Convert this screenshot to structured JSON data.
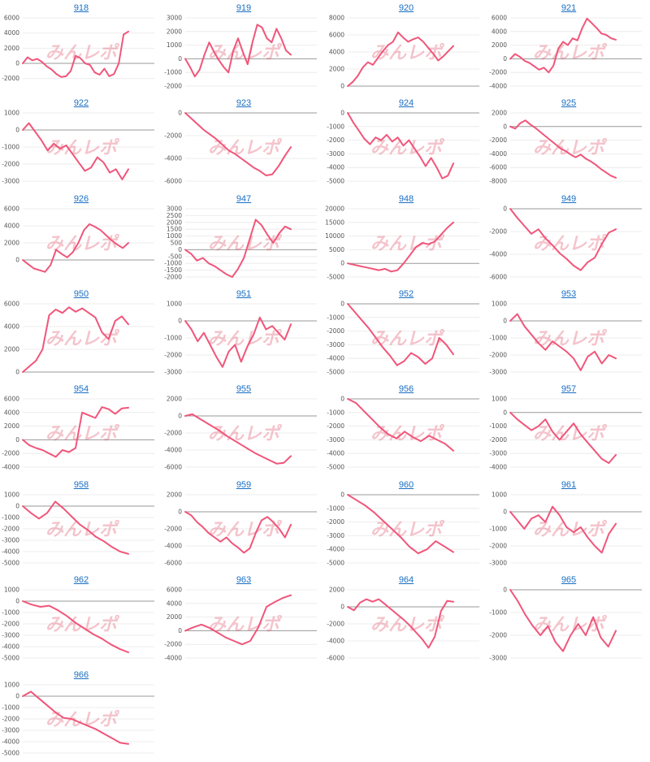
{
  "style": {
    "line_color": "#f0567a",
    "zero_line_color": "#999999",
    "grid_color": "#e8e8e8",
    "title_color": "#1a6fc4",
    "watermark_color": "#e05a6e"
  },
  "watermark": {
    "text": "みんレポ"
  },
  "chart_data": [
    {
      "type": "line",
      "title": "918",
      "yticks": [
        6000,
        4000,
        2000,
        0,
        -2000
      ],
      "ylim": [
        -3000,
        6000
      ],
      "y": [
        0,
        800,
        400,
        600,
        200,
        -400,
        -800,
        -1400,
        -1800,
        -1700,
        -1000,
        1000,
        700,
        0,
        -200,
        -1200,
        -1500,
        -700,
        -1700,
        -1400,
        0,
        3800,
        4200
      ]
    },
    {
      "type": "line",
      "title": "919",
      "yticks": [
        3000,
        2000,
        1000,
        0,
        -1000,
        -2000
      ],
      "ylim": [
        -2000,
        3000
      ],
      "y": [
        0,
        -600,
        -1300,
        -800,
        300,
        1200,
        500,
        -100,
        -600,
        -1000,
        600,
        1500,
        500,
        -400,
        1200,
        2500,
        2300,
        1500,
        1200,
        2200,
        1500,
        600,
        300
      ]
    },
    {
      "type": "line",
      "title": "920",
      "yticks": [
        8000,
        6000,
        4000,
        2000,
        0
      ],
      "ylim": [
        0,
        8000
      ],
      "y": [
        0,
        500,
        1200,
        2200,
        2800,
        2500,
        3300,
        4100,
        4800,
        5200,
        6300,
        5700,
        5200,
        5500,
        5700,
        5200,
        4500,
        3800,
        3000,
        3500,
        4100,
        4700
      ]
    },
    {
      "type": "line",
      "title": "921",
      "yticks": [
        6000,
        4000,
        2000,
        0,
        -2000,
        -4000
      ],
      "ylim": [
        -4000,
        6000
      ],
      "y": [
        0,
        700,
        300,
        -300,
        -600,
        -1100,
        -1600,
        -1300,
        -2000,
        -1000,
        1500,
        2500,
        2000,
        3000,
        2700,
        4500,
        5900,
        5200,
        4500,
        3700,
        3500,
        3000,
        2800
      ]
    },
    {
      "type": "line",
      "title": "922",
      "yticks": [
        1000,
        0,
        -1000,
        -2000,
        -3000
      ],
      "ylim": [
        -3000,
        1000
      ],
      "y": [
        0,
        400,
        -100,
        -600,
        -1200,
        -800,
        -1100,
        -900,
        -1400,
        -1900,
        -2400,
        -2200,
        -1600,
        -1900,
        -2500,
        -2300,
        -2900,
        -2300
      ]
    },
    {
      "type": "line",
      "title": "923",
      "yticks": [
        0,
        -2000,
        -4000,
        -6000
      ],
      "ylim": [
        -6000,
        0
      ],
      "y": [
        0,
        -500,
        -1000,
        -1500,
        -1900,
        -2300,
        -2800,
        -3300,
        -3600,
        -4000,
        -4400,
        -4800,
        -5100,
        -5500,
        -5400,
        -4700,
        -3800,
        -3000
      ]
    },
    {
      "type": "line",
      "title": "924",
      "yticks": [
        0,
        -1000,
        -2000,
        -3000,
        -4000,
        -5000
      ],
      "ylim": [
        -5000,
        0
      ],
      "y": [
        0,
        -700,
        -1300,
        -1900,
        -2300,
        -1800,
        -2000,
        -1600,
        -2100,
        -1800,
        -2400,
        -2000,
        -2600,
        -3200,
        -3900,
        -3300,
        -4000,
        -4800,
        -4600,
        -3700
      ]
    },
    {
      "type": "line",
      "title": "925",
      "yticks": [
        2000,
        0,
        -2000,
        -4000,
        -6000,
        -8000
      ],
      "ylim": [
        -8000,
        2000
      ],
      "y": [
        0,
        -300,
        500,
        900,
        300,
        -200,
        -800,
        -1400,
        -2000,
        -2600,
        -3200,
        -3600,
        -4100,
        -4500,
        -4100,
        -4700,
        -5100,
        -5600,
        -6200,
        -6700,
        -7200,
        -7500
      ]
    },
    {
      "type": "line",
      "title": "926",
      "yticks": [
        6000,
        4000,
        2000,
        0
      ],
      "ylim": [
        -2000,
        6000
      ],
      "y": [
        0,
        -500,
        -1000,
        -1200,
        -1400,
        -600,
        1200,
        700,
        300,
        900,
        2000,
        3500,
        4200,
        3900,
        3500,
        2900,
        2300,
        1800,
        1400,
        2000
      ]
    },
    {
      "type": "line",
      "title": "947",
      "yticks": [
        3000,
        2500,
        2000,
        1500,
        1000,
        500,
        0,
        -500,
        -1000,
        -1500,
        -2000
      ],
      "ylim": [
        -2000,
        3000
      ],
      "y": [
        0,
        -300,
        -800,
        -600,
        -1000,
        -1200,
        -1500,
        -1800,
        -2000,
        -1400,
        -600,
        800,
        2200,
        1800,
        1100,
        500,
        1200,
        1700,
        1500
      ]
    },
    {
      "type": "line",
      "title": "948",
      "yticks": [
        20000,
        15000,
        10000,
        5000,
        0,
        -5000
      ],
      "ylim": [
        -5000,
        20000
      ],
      "y": [
        0,
        -500,
        -1000,
        -1500,
        -2000,
        -2500,
        -2000,
        -3000,
        -2500,
        0,
        3000,
        6000,
        7500,
        7000,
        8000,
        10500,
        13000,
        15000
      ]
    },
    {
      "type": "line",
      "title": "949",
      "yticks": [
        0,
        -2000,
        -4000,
        -6000
      ],
      "ylim": [
        -6000,
        0
      ],
      "y": [
        0,
        -800,
        -1500,
        -2200,
        -1800,
        -2600,
        -3200,
        -3900,
        -4400,
        -5000,
        -5400,
        -4700,
        -4300,
        -3100,
        -2100,
        -1800
      ]
    },
    {
      "type": "line",
      "title": "950",
      "yticks": [
        6000,
        4000,
        2000,
        0
      ],
      "ylim": [
        0,
        6000
      ],
      "y": [
        0,
        500,
        1000,
        2000,
        5000,
        5500,
        5200,
        5700,
        5300,
        5600,
        5200,
        4800,
        3500,
        2900,
        4500,
        4900,
        4200
      ]
    },
    {
      "type": "line",
      "title": "951",
      "yticks": [
        1000,
        0,
        -1000,
        -2000,
        -3000
      ],
      "ylim": [
        -3000,
        1000
      ],
      "y": [
        0,
        -500,
        -1200,
        -700,
        -1400,
        -2100,
        -2700,
        -1800,
        -1400,
        -2400,
        -1500,
        -800,
        200,
        -500,
        -300,
        -700,
        -1100,
        -200
      ]
    },
    {
      "type": "line",
      "title": "952",
      "yticks": [
        0,
        -1000,
        -2000,
        -3000,
        -4000,
        -5000
      ],
      "ylim": [
        -5000,
        0
      ],
      "y": [
        0,
        -600,
        -1200,
        -1800,
        -2500,
        -3200,
        -3800,
        -4500,
        -4200,
        -3600,
        -3900,
        -4400,
        -4000,
        -2500,
        -3000,
        -3700
      ]
    },
    {
      "type": "line",
      "title": "953",
      "yticks": [
        1000,
        0,
        -1000,
        -2000,
        -3000
      ],
      "ylim": [
        -3000,
        1000
      ],
      "y": [
        0,
        400,
        -300,
        -800,
        -1300,
        -1700,
        -1200,
        -1500,
        -1800,
        -2200,
        -2900,
        -2100,
        -1800,
        -2500,
        -2000,
        -2200
      ]
    },
    {
      "type": "line",
      "title": "954",
      "yticks": [
        6000,
        4000,
        2000,
        0,
        -2000,
        -4000
      ],
      "ylim": [
        -4000,
        6000
      ],
      "y": [
        0,
        -800,
        -1200,
        -1500,
        -2000,
        -2500,
        -1500,
        -1800,
        -1200,
        4000,
        3600,
        3200,
        4800,
        4500,
        3800,
        4600,
        4700
      ]
    },
    {
      "type": "line",
      "title": "955",
      "yticks": [
        2000,
        0,
        -2000,
        -4000,
        -6000
      ],
      "ylim": [
        -6000,
        2000
      ],
      "y": [
        0,
        200,
        -300,
        -800,
        -1300,
        -1800,
        -2400,
        -2900,
        -3400,
        -3900,
        -4400,
        -4800,
        -5200,
        -5600,
        -5500,
        -4700
      ]
    },
    {
      "type": "line",
      "title": "956",
      "yticks": [
        0,
        -1000,
        -2000,
        -3000,
        -4000,
        -5000
      ],
      "ylim": [
        -5000,
        0
      ],
      "y": [
        0,
        -300,
        -900,
        -1500,
        -2100,
        -2600,
        -2900,
        -2400,
        -2800,
        -3100,
        -2700,
        -3000,
        -3300,
        -3800
      ]
    },
    {
      "type": "line",
      "title": "957",
      "yticks": [
        1000,
        0,
        -1000,
        -2000,
        -3000,
        -4000
      ],
      "ylim": [
        -4000,
        1000
      ],
      "y": [
        0,
        -500,
        -900,
        -1300,
        -1000,
        -500,
        -1400,
        -2000,
        -1400,
        -800,
        -1600,
        -2200,
        -2800,
        -3400,
        -3700,
        -3100
      ]
    },
    {
      "type": "line",
      "title": "958",
      "yticks": [
        1000,
        0,
        -1000,
        -2000,
        -3000,
        -4000,
        -5000
      ],
      "ylim": [
        -5000,
        1000
      ],
      "y": [
        0,
        -600,
        -1100,
        -600,
        400,
        -200,
        -900,
        -1600,
        -2100,
        -2700,
        -3100,
        -3600,
        -4000,
        -4200
      ]
    },
    {
      "type": "line",
      "title": "959",
      "yticks": [
        2000,
        0,
        -2000,
        -4000,
        -6000
      ],
      "ylim": [
        -6000,
        2000
      ],
      "y": [
        0,
        -400,
        -1200,
        -1800,
        -2500,
        -3000,
        -3500,
        -3000,
        -3700,
        -4200,
        -4800,
        -4300,
        -2500,
        -1000,
        -600,
        -1200,
        -2000,
        -3000,
        -1500
      ]
    },
    {
      "type": "line",
      "title": "960",
      "yticks": [
        0,
        -1000,
        -2000,
        -3000,
        -4000,
        -5000
      ],
      "ylim": [
        -5000,
        0
      ],
      "y": [
        0,
        -400,
        -800,
        -1300,
        -1900,
        -2500,
        -3100,
        -3800,
        -4300,
        -4000,
        -3400,
        -3800,
        -4200
      ]
    },
    {
      "type": "line",
      "title": "961",
      "yticks": [
        1000,
        0,
        -1000,
        -2000,
        -3000
      ],
      "ylim": [
        -3000,
        1000
      ],
      "y": [
        0,
        -500,
        -1000,
        -400,
        -200,
        -600,
        300,
        -200,
        -900,
        -1200,
        -900,
        -1500,
        -2000,
        -2400,
        -1300,
        -700
      ]
    },
    {
      "type": "line",
      "title": "962",
      "yticks": [
        1000,
        0,
        -1000,
        -2000,
        -3000,
        -4000,
        -5000
      ],
      "ylim": [
        -5000,
        1000
      ],
      "y": [
        0,
        -300,
        -500,
        -400,
        -800,
        -1300,
        -1900,
        -2400,
        -2900,
        -3300,
        -3800,
        -4200,
        -4500
      ]
    },
    {
      "type": "line",
      "title": "963",
      "yticks": [
        6000,
        4000,
        2000,
        0,
        -2000,
        -4000
      ],
      "ylim": [
        -4000,
        6000
      ],
      "y": [
        0,
        500,
        900,
        400,
        -300,
        -1000,
        -1500,
        -2000,
        -1500,
        500,
        3500,
        4200,
        4800,
        5200
      ]
    },
    {
      "type": "line",
      "title": "964",
      "yticks": [
        2000,
        0,
        -2000,
        -4000,
        -6000
      ],
      "ylim": [
        -6000,
        2000
      ],
      "y": [
        0,
        -400,
        500,
        900,
        600,
        900,
        300,
        -300,
        -900,
        -1500,
        -2200,
        -3000,
        -3800,
        -4800,
        -3500,
        -500,
        700,
        600
      ]
    },
    {
      "type": "line",
      "title": "965",
      "yticks": [
        0,
        -1000,
        -2000,
        -3000
      ],
      "ylim": [
        -3000,
        0
      ],
      "y": [
        0,
        -500,
        -1100,
        -1600,
        -2000,
        -1600,
        -2300,
        -2700,
        -2000,
        -1500,
        -2000,
        -1200,
        -2100,
        -2500,
        -1800
      ]
    },
    {
      "type": "line",
      "title": "966",
      "yticks": [
        1000,
        0,
        -1000,
        -2000,
        -3000,
        -4000,
        -5000
      ],
      "ylim": [
        -5000,
        1000
      ],
      "y": [
        0,
        400,
        -200,
        -800,
        -1400,
        -1900,
        -2000,
        -2300,
        -2600,
        -2900,
        -3300,
        -3700,
        -4100,
        -4200
      ]
    }
  ]
}
